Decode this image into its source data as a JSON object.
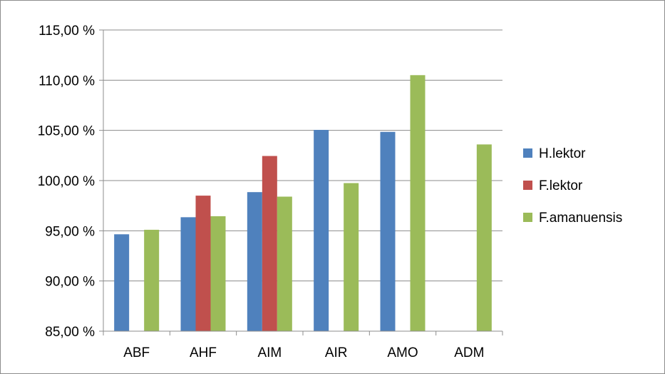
{
  "chart_data": {
    "type": "bar",
    "categories": [
      "ABF",
      "AHF",
      "AIM",
      "AIR",
      "AMO",
      "ADM"
    ],
    "series": [
      {
        "name": "H.lektor",
        "color": "#4f81bd",
        "values": [
          94.65,
          96.35,
          98.85,
          105.05,
          104.85,
          null
        ]
      },
      {
        "name": "F.lektor",
        "color": "#c0504d",
        "values": [
          null,
          98.5,
          102.45,
          null,
          null,
          null
        ]
      },
      {
        "name": "F.amanuensis",
        "color": "#9bbb59",
        "values": [
          95.1,
          96.45,
          98.4,
          99.75,
          110.5,
          103.6
        ]
      }
    ],
    "ylim": [
      85,
      115
    ],
    "yticks": [
      85,
      90,
      95,
      100,
      105,
      110,
      115
    ],
    "ytick_labels": [
      "85,00 %",
      "90,00 %",
      "95,00 %",
      "100,00 %",
      "105,00 %",
      "110,00 %",
      "115,00 %"
    ],
    "grid": true,
    "legend_position": "right"
  }
}
